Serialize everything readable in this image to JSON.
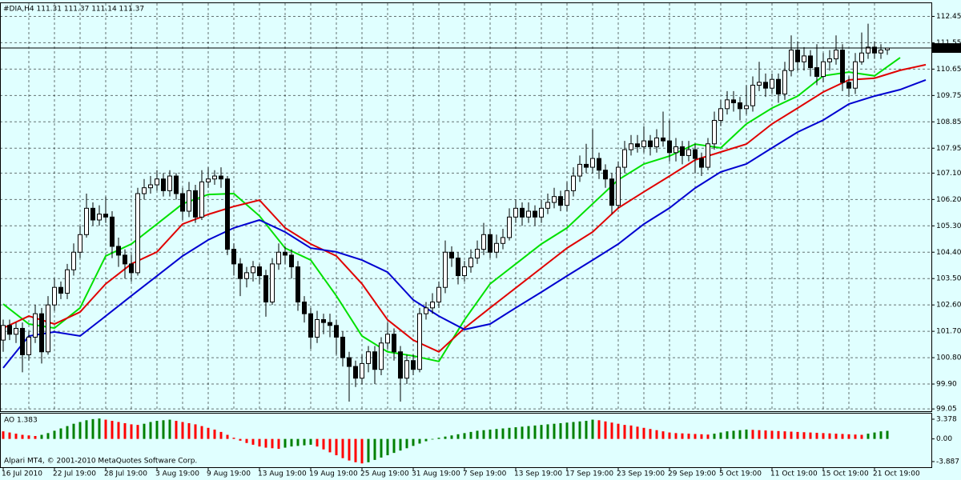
{
  "chart_data": [
    {
      "type": "candlestick",
      "title": "#DIA,H4 111.31 111.37 111.14 111.37",
      "categories": [
        "16 Jul 2010",
        null,
        null,
        null,
        null,
        null,
        null,
        null,
        "22 Jul 19:00",
        null,
        null,
        null,
        null,
        null,
        null,
        null,
        "28 Jul 19:00",
        null,
        null,
        null,
        null,
        null,
        null,
        null,
        "3 Aug 19:00",
        null,
        null,
        null,
        null,
        null,
        null,
        null,
        "9 Aug 19:00",
        null,
        null,
        null,
        null,
        null,
        null,
        null,
        "13 Aug 19:00",
        null,
        null,
        null,
        null,
        null,
        null,
        null,
        "19 Aug 19:00",
        null,
        null,
        null,
        null,
        null,
        null,
        null,
        "25 Aug 19:00",
        null,
        null,
        null,
        null,
        null,
        null,
        null,
        "31 Aug 19:00",
        null,
        null,
        null,
        null,
        null,
        null,
        null,
        "7 Sep 19:00",
        null,
        null,
        null,
        null,
        null,
        null,
        null,
        "13 Sep 19:00",
        null,
        null,
        null,
        null,
        null,
        null,
        null,
        "17 Sep 19:00",
        null,
        null,
        null,
        null,
        null,
        null,
        null,
        "23 Sep 19:00",
        null,
        null,
        null,
        null,
        null,
        null,
        null,
        "29 Sep 19:00",
        null,
        null,
        null,
        null,
        null,
        null,
        null,
        "5 Oct 19:00",
        null,
        null,
        null,
        null,
        null,
        null,
        null,
        "11 Oct 19:00",
        null,
        null,
        null,
        null,
        null,
        null,
        null,
        "15 Oct 19:00",
        null,
        null,
        null,
        null,
        null,
        null,
        null,
        "21 Oct 19:00",
        null,
        null
      ],
      "open": [
        101.4,
        101.9,
        101.6,
        101.8,
        100.9,
        101.5,
        102.3,
        101.0,
        102.6,
        103.2,
        103.0,
        103.8,
        104.4,
        105.0,
        105.9,
        105.5,
        105.7,
        105.6,
        104.6,
        104.3,
        104.0,
        103.7,
        106.4,
        106.6,
        106.7,
        106.9,
        106.5,
        107.0,
        106.4,
        105.8,
        106.5,
        105.6,
        106.8,
        106.9,
        107.0,
        106.9,
        104.5,
        104.0,
        103.5,
        103.7,
        103.9,
        103.6,
        102.7,
        104.0,
        104.4,
        104.3,
        103.9,
        102.7,
        102.3,
        101.5,
        102.1,
        102.0,
        101.9,
        101.5,
        100.8,
        100.5,
        100.1,
        100.6,
        101.0,
        100.4,
        101.3,
        101.6,
        101.0,
        100.1,
        100.7,
        100.4,
        102.3,
        102.5,
        102.7,
        103.2,
        104.4,
        104.2,
        103.6,
        103.9,
        104.2,
        104.5,
        105.0,
        104.4,
        104.7,
        104.9,
        105.6,
        105.9,
        105.6,
        105.8,
        105.6,
        105.9,
        106.1,
        106.3,
        106.0,
        106.5,
        107.0,
        107.4,
        107.3,
        107.6,
        107.2,
        106.9,
        106.0,
        107.3,
        107.9,
        108.1,
        108.0,
        108.2,
        108.0,
        108.3,
        108.2,
        107.8,
        108.0,
        107.7,
        107.9,
        107.6,
        107.3,
        108.1,
        108.9,
        109.3,
        109.6,
        109.5,
        109.3,
        109.4,
        110.1,
        110.2,
        110.0,
        110.3,
        109.8,
        110.6,
        111.3,
        110.9,
        111.1,
        110.7,
        110.4,
        110.9,
        111.0,
        111.3,
        110.2,
        110.0,
        110.9,
        111.2,
        111.4,
        111.2,
        111.31
      ],
      "high": [
        102.1,
        102.1,
        102.0,
        102.0,
        101.7,
        102.6,
        102.5,
        102.9,
        103.5,
        103.4,
        104.0,
        104.7,
        105.3,
        106.4,
        106.1,
        106.0,
        106.3,
        105.8,
        104.9,
        104.5,
        104.3,
        106.6,
        106.9,
        107.0,
        107.2,
        107.1,
        107.2,
        107.1,
        106.6,
        106.8,
        106.7,
        107.2,
        107.3,
        107.2,
        107.3,
        107.0,
        104.7,
        104.2,
        103.9,
        104.1,
        104.0,
        103.8,
        104.2,
        104.7,
        104.6,
        104.5,
        104.1,
        102.9,
        102.5,
        102.4,
        102.3,
        102.3,
        102.1,
        101.7,
        101.0,
        100.7,
        100.9,
        101.2,
        101.2,
        101.5,
        102.0,
        101.8,
        101.2,
        100.9,
        100.9,
        102.5,
        102.7,
        103.0,
        103.4,
        104.8,
        104.6,
        104.4,
        104.1,
        104.5,
        104.8,
        105.4,
        105.2,
        105.0,
        105.2,
        105.9,
        106.2,
        106.1,
        106.1,
        106.0,
        106.2,
        106.4,
        106.6,
        106.5,
        106.8,
        107.3,
        107.7,
        108.1,
        108.6,
        107.8,
        107.4,
        107.1,
        107.5,
        108.2,
        108.4,
        108.4,
        108.7,
        108.4,
        108.6,
        109.2,
        108.9,
        108.3,
        108.2,
        108.2,
        108.1,
        107.8,
        108.3,
        109.2,
        109.6,
        109.9,
        109.9,
        109.7,
        110.1,
        110.4,
        110.9,
        110.5,
        110.5,
        110.5,
        110.9,
        111.8,
        111.6,
        111.4,
        111.3,
        111.5,
        111.2,
        111.3,
        111.8,
        111.5,
        110.4,
        111.2,
        111.9,
        112.2,
        111.6,
        111.5,
        111.37
      ],
      "low": [
        101.0,
        101.4,
        101.3,
        100.3,
        100.7,
        101.3,
        100.6,
        100.9,
        102.4,
        102.8,
        102.8,
        103.6,
        104.2,
        104.9,
        105.3,
        105.3,
        105.4,
        104.2,
        103.9,
        103.5,
        103.4,
        103.6,
        106.2,
        106.4,
        106.5,
        106.3,
        106.3,
        106.2,
        105.5,
        105.6,
        105.4,
        105.5,
        106.6,
        106.7,
        106.6,
        104.3,
        103.6,
        102.9,
        103.2,
        103.4,
        103.3,
        102.2,
        102.6,
        103.8,
        104.0,
        103.5,
        102.4,
        102.0,
        101.1,
        101.3,
        101.6,
        101.5,
        100.9,
        100.5,
        99.3,
        99.8,
        99.9,
        100.3,
        99.9,
        100.2,
        101.1,
        100.7,
        99.3,
        99.9,
        100.2,
        100.3,
        102.1,
        102.3,
        102.5,
        103.0,
        103.9,
        103.3,
        103.4,
        103.7,
        104.0,
        104.3,
        104.2,
        104.2,
        104.5,
        104.8,
        105.4,
        105.3,
        105.4,
        105.3,
        105.4,
        105.7,
        105.9,
        105.8,
        105.8,
        106.3,
        106.8,
        107.1,
        107.1,
        106.9,
        106.6,
        105.7,
        105.9,
        107.1,
        107.7,
        107.8,
        107.8,
        107.7,
        107.8,
        108.0,
        107.5,
        107.5,
        107.4,
        107.5,
        107.1,
        107.0,
        107.2,
        107.9,
        108.7,
        109.1,
        109.2,
        108.9,
        109.1,
        109.2,
        109.9,
        109.7,
        109.8,
        109.5,
        109.6,
        110.4,
        110.6,
        110.6,
        110.4,
        110.1,
        110.2,
        110.6,
        110.8,
        109.9,
        109.7,
        109.8,
        110.8,
        111.0,
        111.0,
        111.0,
        111.14
      ],
      "close": [
        101.9,
        101.6,
        101.8,
        100.9,
        101.5,
        102.3,
        101.0,
        102.6,
        103.2,
        103.0,
        103.8,
        104.4,
        105.0,
        105.9,
        105.5,
        105.7,
        105.6,
        104.6,
        104.3,
        104.0,
        103.7,
        106.4,
        106.6,
        106.7,
        106.9,
        106.5,
        107.0,
        106.4,
        105.8,
        106.5,
        105.6,
        106.8,
        106.9,
        107.0,
        106.9,
        104.5,
        104.0,
        103.5,
        103.7,
        103.9,
        103.6,
        102.7,
        104.0,
        104.4,
        104.3,
        103.9,
        102.7,
        102.3,
        101.5,
        102.1,
        102.0,
        101.9,
        101.5,
        100.8,
        100.5,
        100.1,
        100.6,
        101.0,
        100.4,
        101.3,
        101.6,
        101.0,
        100.1,
        100.7,
        100.4,
        102.3,
        102.5,
        102.7,
        103.2,
        104.4,
        104.2,
        103.6,
        103.9,
        104.2,
        104.5,
        105.0,
        104.4,
        104.7,
        104.9,
        105.6,
        105.9,
        105.6,
        105.8,
        105.6,
        105.9,
        106.1,
        106.3,
        106.0,
        106.5,
        107.0,
        107.4,
        107.3,
        107.6,
        107.2,
        106.9,
        106.0,
        107.3,
        107.9,
        108.1,
        108.0,
        108.2,
        108.0,
        108.3,
        108.2,
        107.8,
        108.0,
        107.7,
        107.9,
        107.6,
        107.3,
        108.1,
        108.9,
        109.3,
        109.6,
        109.5,
        109.3,
        109.4,
        110.1,
        110.2,
        110.0,
        110.3,
        109.8,
        110.6,
        111.3,
        110.9,
        111.1,
        110.7,
        110.4,
        110.9,
        111.0,
        111.3,
        110.2,
        110.0,
        110.9,
        111.2,
        111.4,
        111.2,
        111.3,
        111.37
      ],
      "up_color": "#ffffff",
      "down_color": "#000000",
      "wick_color": "#000000",
      "series": [
        {
          "color": "#00e000",
          "x": [
            0,
            4,
            8,
            12,
            16,
            20,
            24,
            28,
            32,
            36,
            40,
            44,
            48,
            52,
            56,
            60,
            64,
            68,
            72,
            76,
            80,
            84,
            88,
            92,
            96,
            100,
            104,
            108,
            112,
            116,
            120,
            124,
            128,
            132,
            136,
            140
          ],
          "values": [
            102.63,
            101.95,
            101.81,
            102.5,
            104.27,
            104.68,
            105.36,
            106.05,
            106.37,
            106.4,
            105.64,
            104.54,
            104.13,
            102.91,
            101.54,
            101.0,
            100.86,
            100.67,
            102.09,
            103.32,
            104.0,
            104.68,
            105.23,
            106.05,
            106.87,
            107.41,
            107.68,
            108.09,
            107.96,
            108.78,
            109.32,
            109.73,
            110.42,
            110.55,
            110.42,
            111.04
          ]
        },
        {
          "color": "#e00000",
          "x": [
            0,
            4,
            8,
            12,
            16,
            20,
            24,
            28,
            32,
            36,
            40,
            44,
            48,
            52,
            56,
            60,
            64,
            68,
            72,
            76,
            80,
            84,
            88,
            92,
            96,
            100,
            104,
            108,
            112,
            116,
            120,
            124,
            128,
            132,
            136,
            140,
            144
          ],
          "values": [
            101.81,
            102.22,
            101.95,
            102.36,
            103.32,
            104.0,
            104.41,
            105.36,
            105.69,
            105.96,
            106.18,
            105.23,
            104.68,
            104.27,
            103.32,
            102.09,
            101.4,
            101.0,
            101.81,
            102.5,
            103.18,
            103.86,
            104.54,
            105.09,
            105.91,
            106.46,
            107.0,
            107.55,
            107.82,
            108.09,
            108.78,
            109.32,
            109.87,
            110.28,
            110.34,
            110.61,
            110.8
          ]
        },
        {
          "color": "#0000d0",
          "x": [
            0,
            4,
            8,
            12,
            16,
            20,
            24,
            28,
            32,
            36,
            40,
            44,
            48,
            52,
            56,
            60,
            64,
            68,
            72,
            76,
            80,
            84,
            88,
            92,
            96,
            100,
            104,
            108,
            112,
            116,
            120,
            124,
            128,
            132,
            136,
            140,
            144
          ],
          "values": [
            100.45,
            101.54,
            101.68,
            101.54,
            102.22,
            102.91,
            103.59,
            104.27,
            104.82,
            105.23,
            105.5,
            105.09,
            104.54,
            104.41,
            104.13,
            103.72,
            102.77,
            102.22,
            101.76,
            101.95,
            102.5,
            103.04,
            103.59,
            104.13,
            104.68,
            105.36,
            105.91,
            106.59,
            107.14,
            107.41,
            107.96,
            108.5,
            108.91,
            109.46,
            109.73,
            109.95,
            110.28
          ]
        }
      ],
      "last_price": 111.37,
      "xlim": [
        -0.5,
        144.875
      ],
      "ylim": [
        99.0,
        112.9
      ],
      "yticks": [
        112.45,
        111.55,
        110.65,
        109.75,
        108.85,
        107.95,
        {
          "value": 107.1,
          "label": "107.10"
        },
        {
          "value": 106.2,
          "label": "106.20"
        },
        {
          "value": 105.3,
          "label": "105.30"
        },
        {
          "value": 104.4,
          "label": "104.40"
        },
        {
          "value": 103.5,
          "label": "103.50"
        },
        {
          "value": 102.6,
          "label": "102.60"
        },
        {
          "value": 101.7,
          "label": "101.70"
        },
        {
          "value": 100.8,
          "label": "100.80"
        },
        {
          "value": 99.9,
          "label": "99.90"
        },
        99.05
      ],
      "grid": true
    },
    {
      "type": "bar",
      "title": "AO 1.383",
      "values": [
        1.3,
        1.1,
        0.9,
        0.7,
        0.6,
        0.5,
        0.7,
        1.0,
        1.4,
        1.8,
        2.2,
        2.6,
        2.9,
        3.2,
        3.4,
        3.5,
        3.3,
        3.1,
        2.9,
        2.7,
        2.5,
        2.4,
        2.6,
        2.9,
        3.1,
        3.2,
        3.3,
        3.1,
        2.9,
        2.7,
        2.5,
        2.2,
        1.9,
        1.6,
        1.2,
        0.7,
        0.2,
        -0.3,
        -0.7,
        -1.0,
        -1.3,
        -1.5,
        -1.6,
        -1.7,
        -1.5,
        -1.3,
        -1.2,
        -1.1,
        -1.0,
        -1.3,
        -1.8,
        -2.3,
        -2.8,
        -3.3,
        -3.7,
        -4.0,
        -4.2,
        -4.0,
        -3.6,
        -3.2,
        -2.8,
        -2.4,
        -2.0,
        -1.6,
        -1.2,
        -0.8,
        -0.4,
        -0.1,
        0.2,
        0.4,
        0.6,
        0.8,
        1.0,
        1.2,
        1.4,
        1.5,
        1.6,
        1.7,
        1.8,
        1.9,
        2.0,
        2.1,
        2.2,
        2.3,
        2.4,
        2.5,
        2.6,
        2.7,
        2.8,
        2.9,
        3.0,
        3.1,
        3.3,
        3.2,
        3.0,
        2.8,
        2.6,
        2.4,
        2.3,
        2.1,
        1.9,
        1.7,
        1.5,
        1.3,
        1.1,
        1.0,
        0.95,
        0.9,
        0.85,
        0.8,
        0.75,
        0.9,
        1.1,
        1.3,
        1.4,
        1.5,
        1.6,
        1.55,
        1.5,
        1.45,
        1.4,
        1.35,
        1.3,
        1.25,
        1.2,
        1.15,
        1.1,
        1.05,
        1.0,
        0.95,
        0.9,
        0.85,
        0.8,
        0.75,
        0.7,
        0.9,
        1.1,
        1.3,
        1.383
      ],
      "up_color": "#008000",
      "down_color": "#ff0000",
      "ylim": [
        -4.85,
        4.34
      ],
      "yticks": [
        3.378,
        {
          "value": 0,
          "label": "0.00"
        },
        -3.887
      ]
    }
  ],
  "footer": "Alpari MT4, © 2001-2010 MetaQuotes Software Corp."
}
